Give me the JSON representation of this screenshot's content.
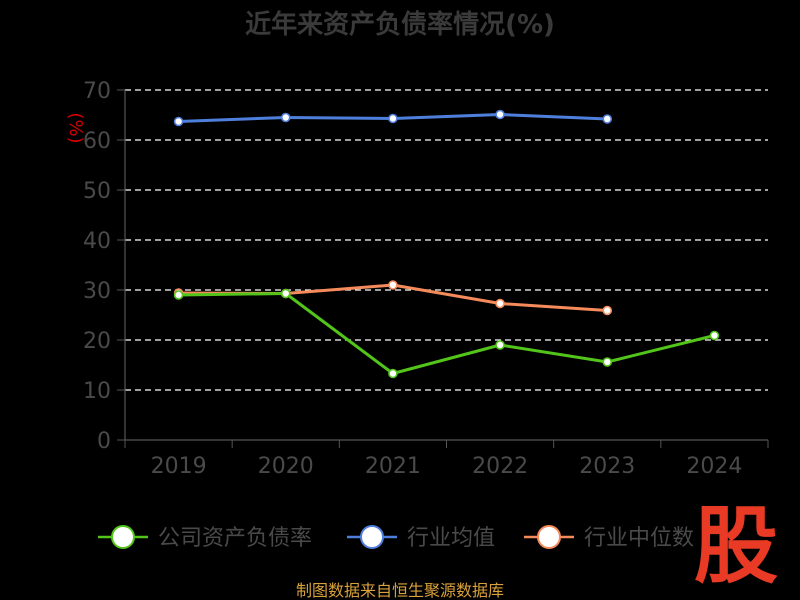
{
  "chart_data": {
    "type": "line",
    "title": "近年来资产负债率情况(%)",
    "ylabel": "(%)",
    "categories": [
      "2019",
      "2020",
      "2021",
      "2022",
      "2023",
      "2024"
    ],
    "ylim": [
      0,
      70
    ],
    "yticks": [
      0,
      10,
      20,
      30,
      40,
      50,
      60,
      70
    ],
    "grid": true,
    "legend_position": "bottom",
    "series": [
      {
        "name": "公司资产负债率",
        "color": "#52c41a",
        "values": [
          29.0,
          29.3,
          13.3,
          19.0,
          15.6,
          20.9
        ]
      },
      {
        "name": "行业均值",
        "color": "#4f7fdc",
        "values": [
          63.7,
          64.5,
          64.3,
          65.1,
          64.2,
          null
        ]
      },
      {
        "name": "行业中位数",
        "color": "#f58a5b",
        "values": [
          29.4,
          29.3,
          31.0,
          27.3,
          25.9,
          null
        ]
      }
    ]
  },
  "footer": {
    "source": "制图数据来自恒生聚源数据库"
  },
  "watermark": {
    "text": "股"
  }
}
